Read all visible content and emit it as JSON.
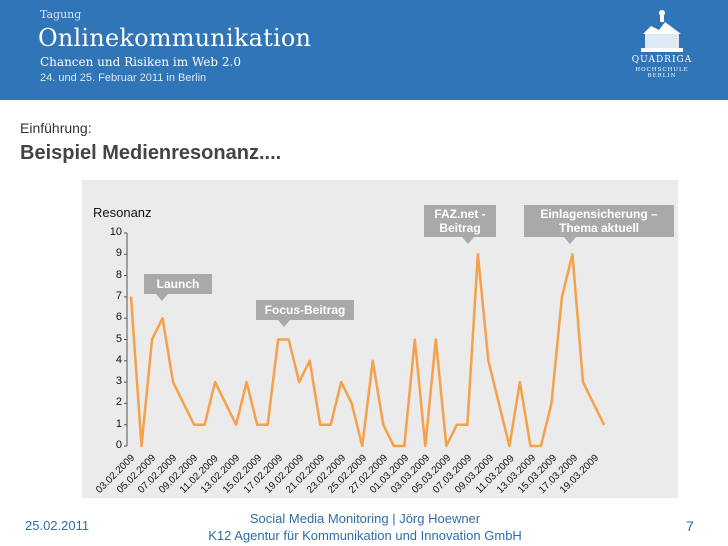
{
  "header": {
    "tag": "Tagung",
    "title": "Onlinekommunikation",
    "subtitle": "Chancen und Risiken im Web 2.0",
    "event_date": "24. und 25. Februar 2011 in Berlin",
    "logo_name": "QUADRIGA",
    "logo_sub": "HOCHSCHULE BERLIN"
  },
  "slide": {
    "kicker": "Einführung:",
    "title": "Beispiel Medienresonanz...."
  },
  "chart_data": {
    "type": "line",
    "ylabel": "Resonanz",
    "ylim": [
      0,
      10
    ],
    "yticks": [
      "0",
      "1",
      "2",
      "3",
      "4",
      "5",
      "6",
      "7",
      "8",
      "9",
      "10"
    ],
    "xtick_labels": [
      "03.02.2009",
      "05.02.2009",
      "07.02.2009",
      "09.02.2009",
      "11.02.2009",
      "13.02.2009",
      "15.02.2009",
      "17.02.2009",
      "19.02.2009",
      "21.02.2009",
      "23.02.2009",
      "25.02.2009",
      "27.02.2009",
      "01.03.2009",
      "03.03.2009",
      "05.03.2009",
      "07.03.2009",
      "09.03.2009",
      "11.03.2009",
      "13.03.2009",
      "15.03.2009",
      "17.03.2009",
      "19.03.2009"
    ],
    "values": [
      7,
      0,
      5,
      6,
      3,
      2,
      1,
      1,
      3,
      2,
      1,
      3,
      1,
      1,
      5,
      5,
      3,
      4,
      1,
      1,
      3,
      2,
      0,
      4,
      1,
      0,
      0,
      5,
      0,
      5,
      0,
      1,
      1,
      9,
      4,
      2,
      0,
      3,
      0,
      0,
      2,
      7,
      9,
      3,
      2,
      1
    ],
    "color": "#f5a04a",
    "annotations": [
      {
        "text": "Launch"
      },
      {
        "text": "Focus-Beitrag"
      },
      {
        "text": "FAZ.net - Beitrag"
      },
      {
        "text": "Einlagensicherung – Thema aktuell"
      }
    ]
  },
  "footer": {
    "date": "25.02.2011",
    "line1": "Social Media Monitoring | Jörg Hoewner",
    "line2": "K12 Agentur für Kommunikation und Innovation GmbH",
    "page": "7"
  }
}
